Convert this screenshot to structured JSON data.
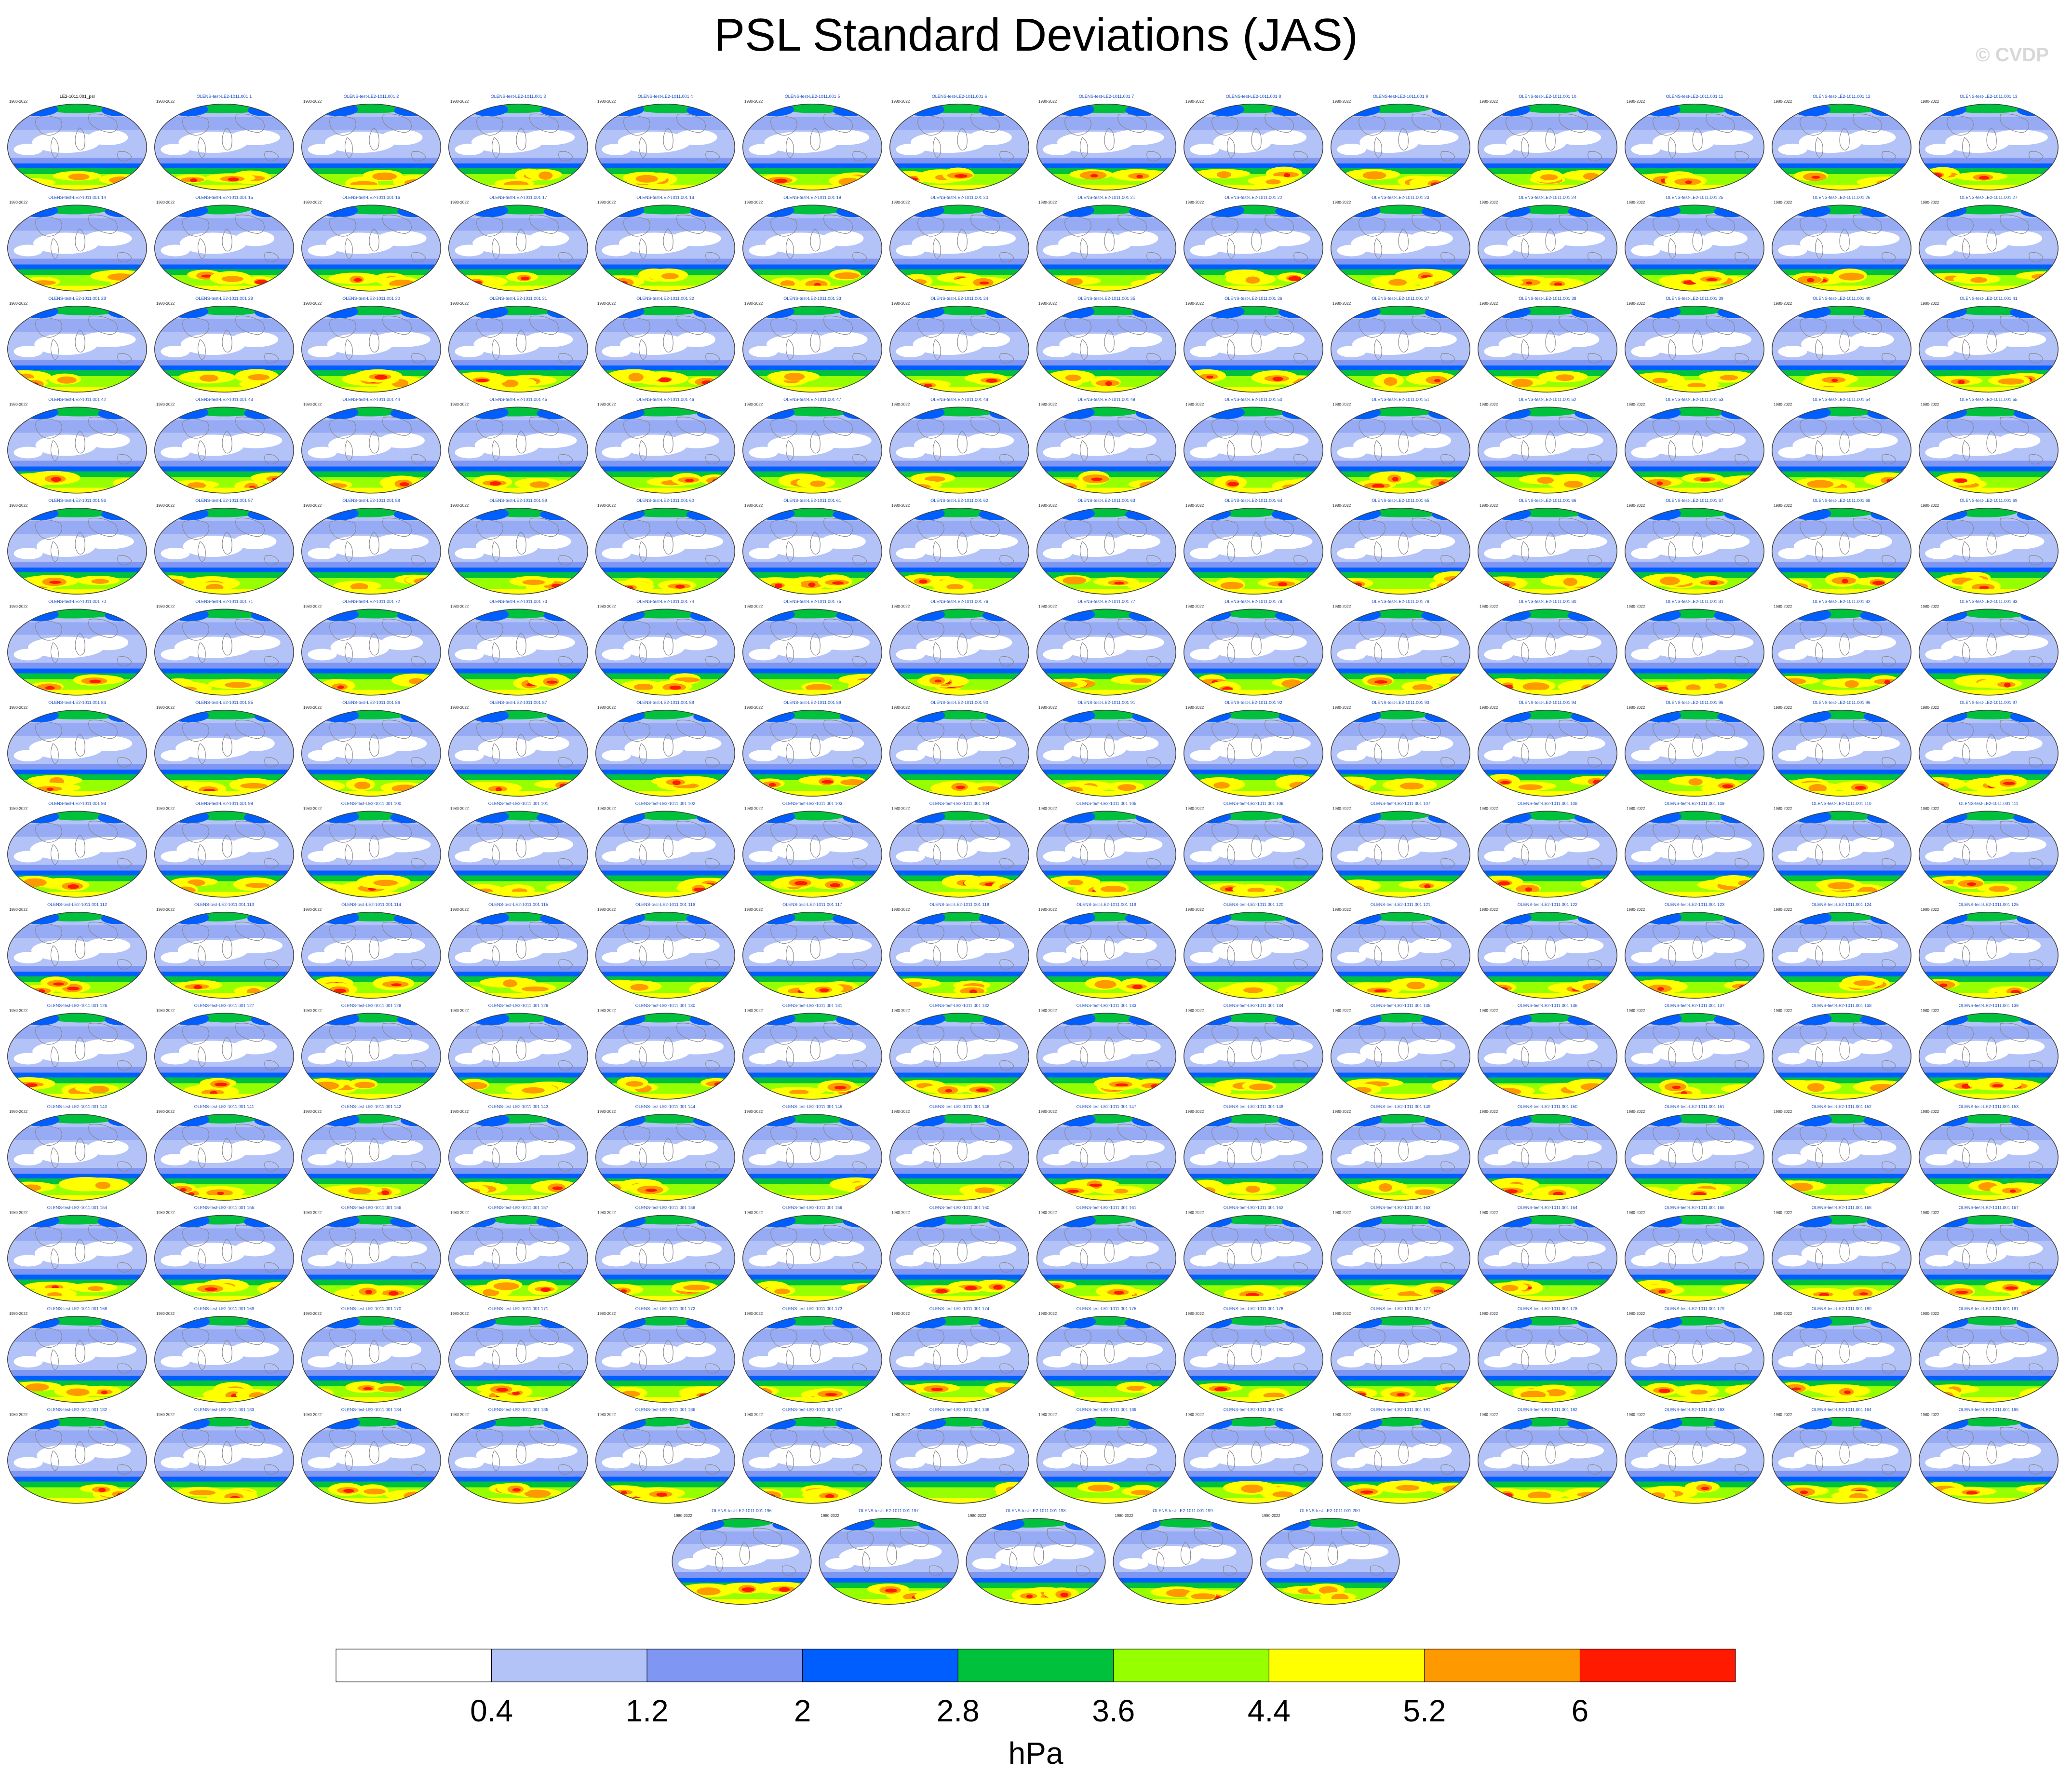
{
  "title": "PSL Standard Deviations (JAS)",
  "watermark": "© CVDP",
  "panel_label_prefix": "OLENS-test-LE2-1011.001 ",
  "panel_period": "1980-2022",
  "first_panel_label": "LE2-1011.001_psl",
  "colors": {
    "land_outline": "#888888",
    "levels": [
      "#ffffff",
      "#b4c3f7",
      "#7f96f2",
      "#005eff",
      "#00c13c",
      "#96ff00",
      "#ffff00",
      "#ff9900",
      "#ff1a00"
    ]
  },
  "chart_data": {
    "type": "heatmap",
    "title": "PSL Standard Deviations (JAS)",
    "panel_count": 201,
    "panels_per_row": 14,
    "projection": "robinson",
    "member_labels_start": 1,
    "member_labels_end": 200,
    "colorbar": {
      "levels": [
        0.4,
        1.2,
        2,
        2.8,
        3.6,
        4.4,
        5.2,
        6
      ],
      "tick_labels": [
        "0.4",
        "1.2",
        "2",
        "2.8",
        "3.6",
        "4.4",
        "5.2",
        "6"
      ],
      "unit": "hPa"
    }
  }
}
